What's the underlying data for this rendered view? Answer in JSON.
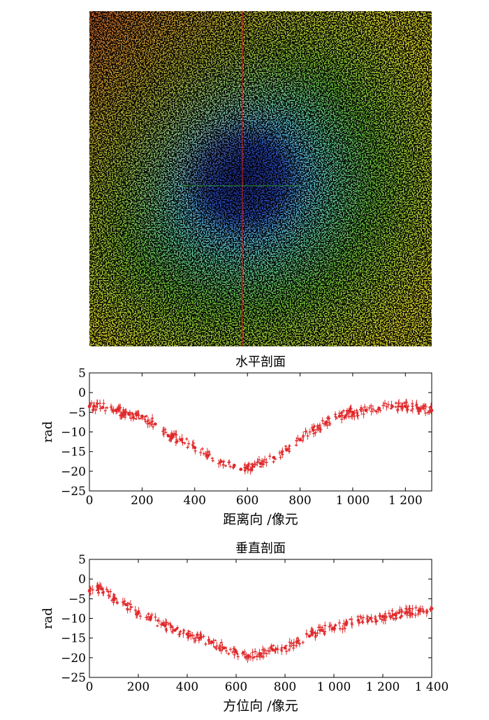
{
  "image": {
    "crosshair_color": "#d8262a",
    "crosshair_h_color": "#2f8f2f"
  },
  "chart_data": [
    {
      "type": "scatter",
      "title": "水平剖面",
      "xlabel": "距离向 /像元",
      "ylabel": "rad",
      "xlim": [
        0,
        1300
      ],
      "ylim": [
        -25,
        5
      ],
      "xticks": [
        0,
        200,
        400,
        600,
        800,
        1000,
        1200
      ],
      "xtick_labels": [
        "0",
        "200",
        "400",
        "600",
        "800",
        "1 000",
        "1 200"
      ],
      "yticks": [
        5,
        0,
        -5,
        -10,
        -15,
        -20,
        -25
      ],
      "ytick_labels": [
        "5",
        "0",
        "−5",
        "−10",
        "−15",
        "−20",
        "−25"
      ],
      "grid": false,
      "color": "#e0282a",
      "x": [
        0,
        50,
        100,
        150,
        200,
        250,
        300,
        350,
        400,
        450,
        500,
        550,
        575,
        600,
        650,
        700,
        750,
        800,
        850,
        900,
        950,
        1000,
        1050,
        1100,
        1150,
        1200,
        1250,
        1300
      ],
      "y": [
        -3.5,
        -3.8,
        -4.5,
        -5.5,
        -6,
        -8,
        -11,
        -12,
        -14,
        -16,
        -17.5,
        -18.5,
        -19.5,
        -19,
        -18,
        -16.5,
        -14.5,
        -12,
        -9.5,
        -7.5,
        -6,
        -5,
        -4.5,
        -4,
        -3.5,
        -3.5,
        -4,
        -4.5
      ]
    },
    {
      "type": "scatter",
      "title": "垂直剖面",
      "xlabel": "方位向 /像元",
      "ylabel": "rad",
      "xlim": [
        0,
        1400
      ],
      "ylim": [
        -25,
        5
      ],
      "xticks": [
        0,
        200,
        400,
        600,
        800,
        1000,
        1200,
        1400
      ],
      "xtick_labels": [
        "0",
        "200",
        "400",
        "600",
        "800",
        "1 000",
        "1 200",
        "1 400"
      ],
      "yticks": [
        5,
        0,
        -5,
        -10,
        -15,
        -20,
        -25
      ],
      "ytick_labels": [
        "5",
        "0",
        "−5",
        "−10",
        "−15",
        "−20",
        "−25"
      ],
      "grid": false,
      "color": "#e0282a",
      "x": [
        0,
        50,
        100,
        150,
        200,
        250,
        300,
        350,
        400,
        450,
        500,
        550,
        600,
        650,
        700,
        750,
        800,
        850,
        900,
        950,
        1000,
        1050,
        1100,
        1150,
        1200,
        1250,
        1300,
        1350,
        1400
      ],
      "y": [
        -3,
        -2.5,
        -5,
        -6.5,
        -8.5,
        -10,
        -11.5,
        -13,
        -14,
        -15,
        -16,
        -17.5,
        -18.5,
        -19.5,
        -19,
        -18,
        -17.5,
        -16,
        -14.5,
        -13,
        -12.5,
        -11.5,
        -10.5,
        -10,
        -9.5,
        -9,
        -8.5,
        -8,
        -7.5
      ]
    }
  ]
}
